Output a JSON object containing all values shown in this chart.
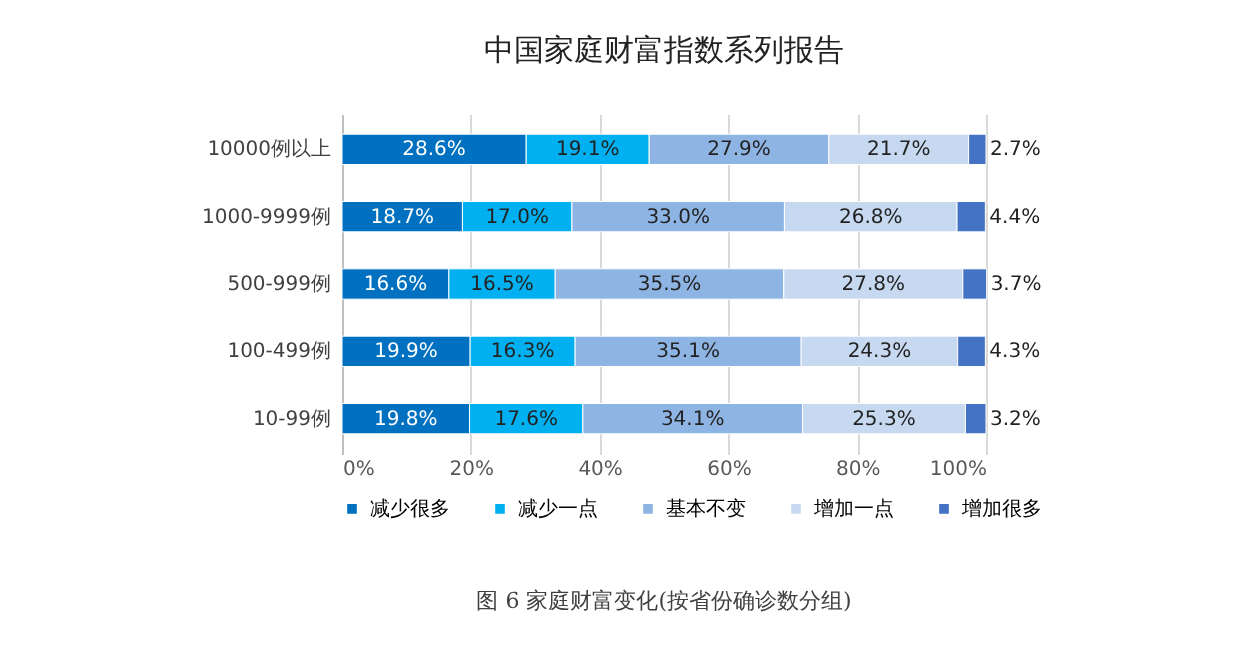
{
  "chart_data": {
    "type": "bar",
    "orientation": "horizontal",
    "stacked": true,
    "title": "中国家庭财富指数系列报告",
    "annotations": [
      "图 6 家庭财富变化(按省份确诊数分组)"
    ],
    "categories": [
      "10000例以上",
      "1000-9999例",
      "500-999例",
      "100-499例",
      "10-99例"
    ],
    "series": [
      {
        "name": "减少很多",
        "color": "#0070c0",
        "values": [
          28.6,
          18.7,
          16.6,
          19.9,
          19.8
        ],
        "value_labels": [
          "28.6%",
          "18.7%",
          "16.6%",
          "19.9%",
          "19.8%"
        ]
      },
      {
        "name": "减少一点",
        "color": "#00b0f0",
        "values": [
          19.1,
          17.0,
          16.5,
          16.3,
          17.6
        ],
        "value_labels": [
          "19.1%",
          "17.0%",
          "16.5%",
          "16.3%",
          "17.6%"
        ]
      },
      {
        "name": "基本不变",
        "color": "#8eb4e3",
        "values": [
          27.9,
          33.0,
          35.5,
          35.1,
          34.1
        ],
        "value_labels": [
          "27.9%",
          "33.0%",
          "35.5%",
          "35.1%",
          "34.1%"
        ]
      },
      {
        "name": "增加一点",
        "color": "#c6d9f1",
        "values": [
          21.7,
          26.8,
          27.8,
          24.3,
          25.3
        ],
        "value_labels": [
          "21.7%",
          "26.8%",
          "27.8%",
          "24.3%",
          "25.3%"
        ]
      },
      {
        "name": "增加很多",
        "color": "#4472c4",
        "values": [
          2.7,
          4.4,
          3.7,
          4.3,
          3.2
        ],
        "value_labels": [
          "2.7%",
          "4.4%",
          "3.7%",
          "4.3%",
          "3.2%"
        ]
      }
    ],
    "xlim": [
      0,
      100
    ],
    "xticks": [
      {
        "value": 0,
        "label": "0%"
      },
      {
        "value": 20,
        "label": "20%"
      },
      {
        "value": 40,
        "label": "40%"
      },
      {
        "value": 60,
        "label": "60%"
      },
      {
        "value": 80,
        "label": "80%"
      },
      {
        "value": 100,
        "label": "100%"
      }
    ],
    "grid": "x",
    "legend": "bottom"
  }
}
